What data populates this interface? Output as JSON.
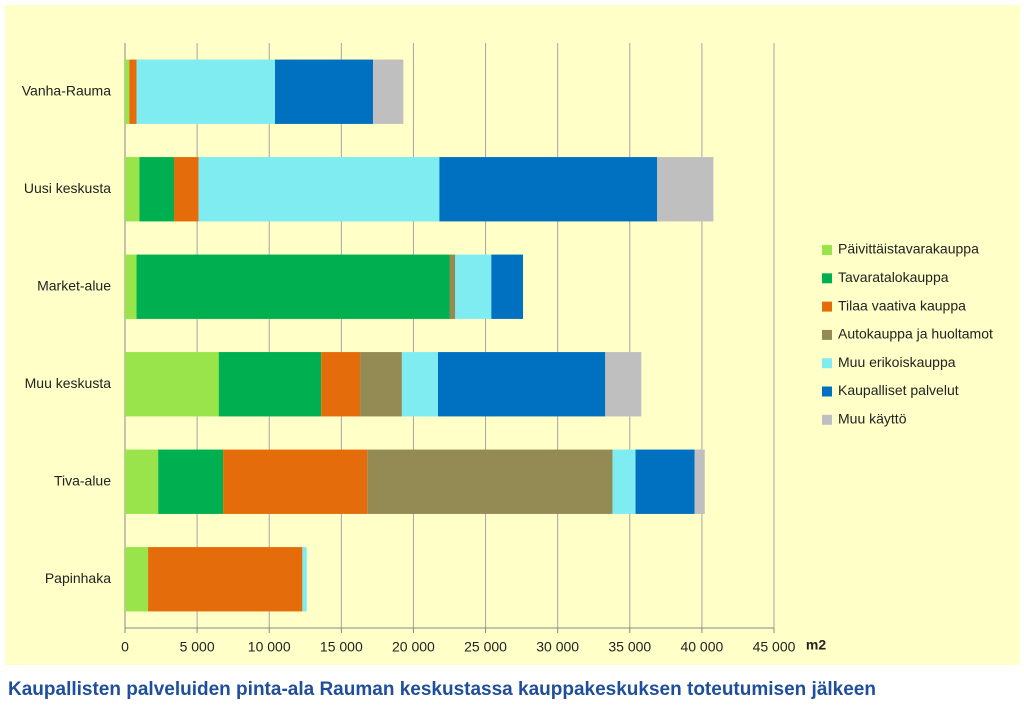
{
  "chart_data": {
    "type": "stacked-barh",
    "title": "Kaupallisten palveluiden pinta-ala Rauman keskustassa kauppakeskuksen toteutumisen jälkeen",
    "x_label": "m2",
    "categories": [
      "Vanha-Rauma",
      "Uusi keskusta",
      "Market-alue",
      "Muu keskusta",
      "Tiva-alue",
      "Papinhaka"
    ],
    "series": [
      {
        "name": "Päivittäistavarakauppa",
        "color": "#99e44a",
        "values": [
          300,
          1000,
          800,
          6500,
          2300,
          1600
        ]
      },
      {
        "name": "Tavaratalokauppa",
        "color": "#00b050",
        "values": [
          0,
          2400,
          21700,
          7100,
          4500,
          0
        ]
      },
      {
        "name": "Tilaa vaativa kauppa",
        "color": "#e46c0a",
        "values": [
          500,
          1700,
          0,
          2700,
          10000,
          10700
        ]
      },
      {
        "name": "Autokauppa ja huoltamot",
        "color": "#948a54",
        "values": [
          0,
          0,
          400,
          2900,
          17000,
          0
        ]
      },
      {
        "name": "Muu erikoiskauppa",
        "color": "#7fecf2",
        "values": [
          9600,
          16700,
          2500,
          2500,
          1600,
          300
        ]
      },
      {
        "name": "Kaupalliset palvelut",
        "color": "#0070c0",
        "values": [
          6800,
          15100,
          2200,
          11600,
          4100,
          0
        ]
      },
      {
        "name": "Muu käyttö",
        "color": "#bfbfbf",
        "values": [
          2100,
          3900,
          0,
          2500,
          700,
          0
        ]
      }
    ],
    "xlim": [
      0,
      45000
    ],
    "xticks": [
      0,
      {
        "value": 5000,
        "label": "5 000"
      },
      {
        "value": 10000,
        "label": "10 000"
      },
      {
        "value": 15000,
        "label": "15 000"
      },
      {
        "value": 20000,
        "label": "20 000"
      },
      {
        "value": 25000,
        "label": "25 000"
      },
      {
        "value": 30000,
        "label": "30 000"
      },
      {
        "value": 35000,
        "label": "35 000"
      },
      {
        "value": 40000,
        "label": "40 000"
      },
      {
        "value": 45000,
        "label": "45 000"
      }
    ],
    "grid": true,
    "legend": "right"
  }
}
